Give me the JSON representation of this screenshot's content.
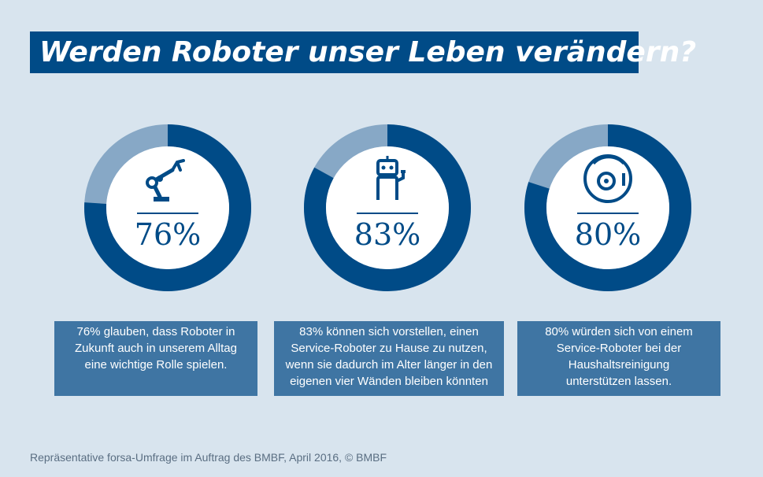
{
  "title": "Werden Roboter unser Leben verändern?",
  "colors": {
    "background": "#d8e4ee",
    "primary": "#004b87",
    "remainder": "#87a8c6",
    "caption_bg": "#3f75a3"
  },
  "chart_data": {
    "type": "pie",
    "charts": [
      {
        "value": 76,
        "label": "76%",
        "icon": "robot-arm-icon",
        "caption": [
          "76% glauben, dass Roboter in",
          "Zukunft auch in unserem Alltag",
          "eine wichtige Rolle spielen."
        ]
      },
      {
        "value": 83,
        "label": "83%",
        "icon": "service-robot-icon",
        "caption": [
          "83% können sich vorstellen, einen",
          "Service-Roboter zu Hause zu nutzen,",
          "wenn sie dadurch im Alter länger in den",
          "eigenen vier Wänden bleiben könnten"
        ]
      },
      {
        "value": 80,
        "label": "80%",
        "icon": "robot-vacuum-icon",
        "caption": [
          "80% würden sich von einem",
          "Service-Roboter bei der",
          "Haushaltsreinigung",
          "unterstützen lassen."
        ]
      }
    ]
  },
  "footer": "Repräsentative forsa-Umfrage im Auftrag des BMBF, April 2016, © BMBF"
}
